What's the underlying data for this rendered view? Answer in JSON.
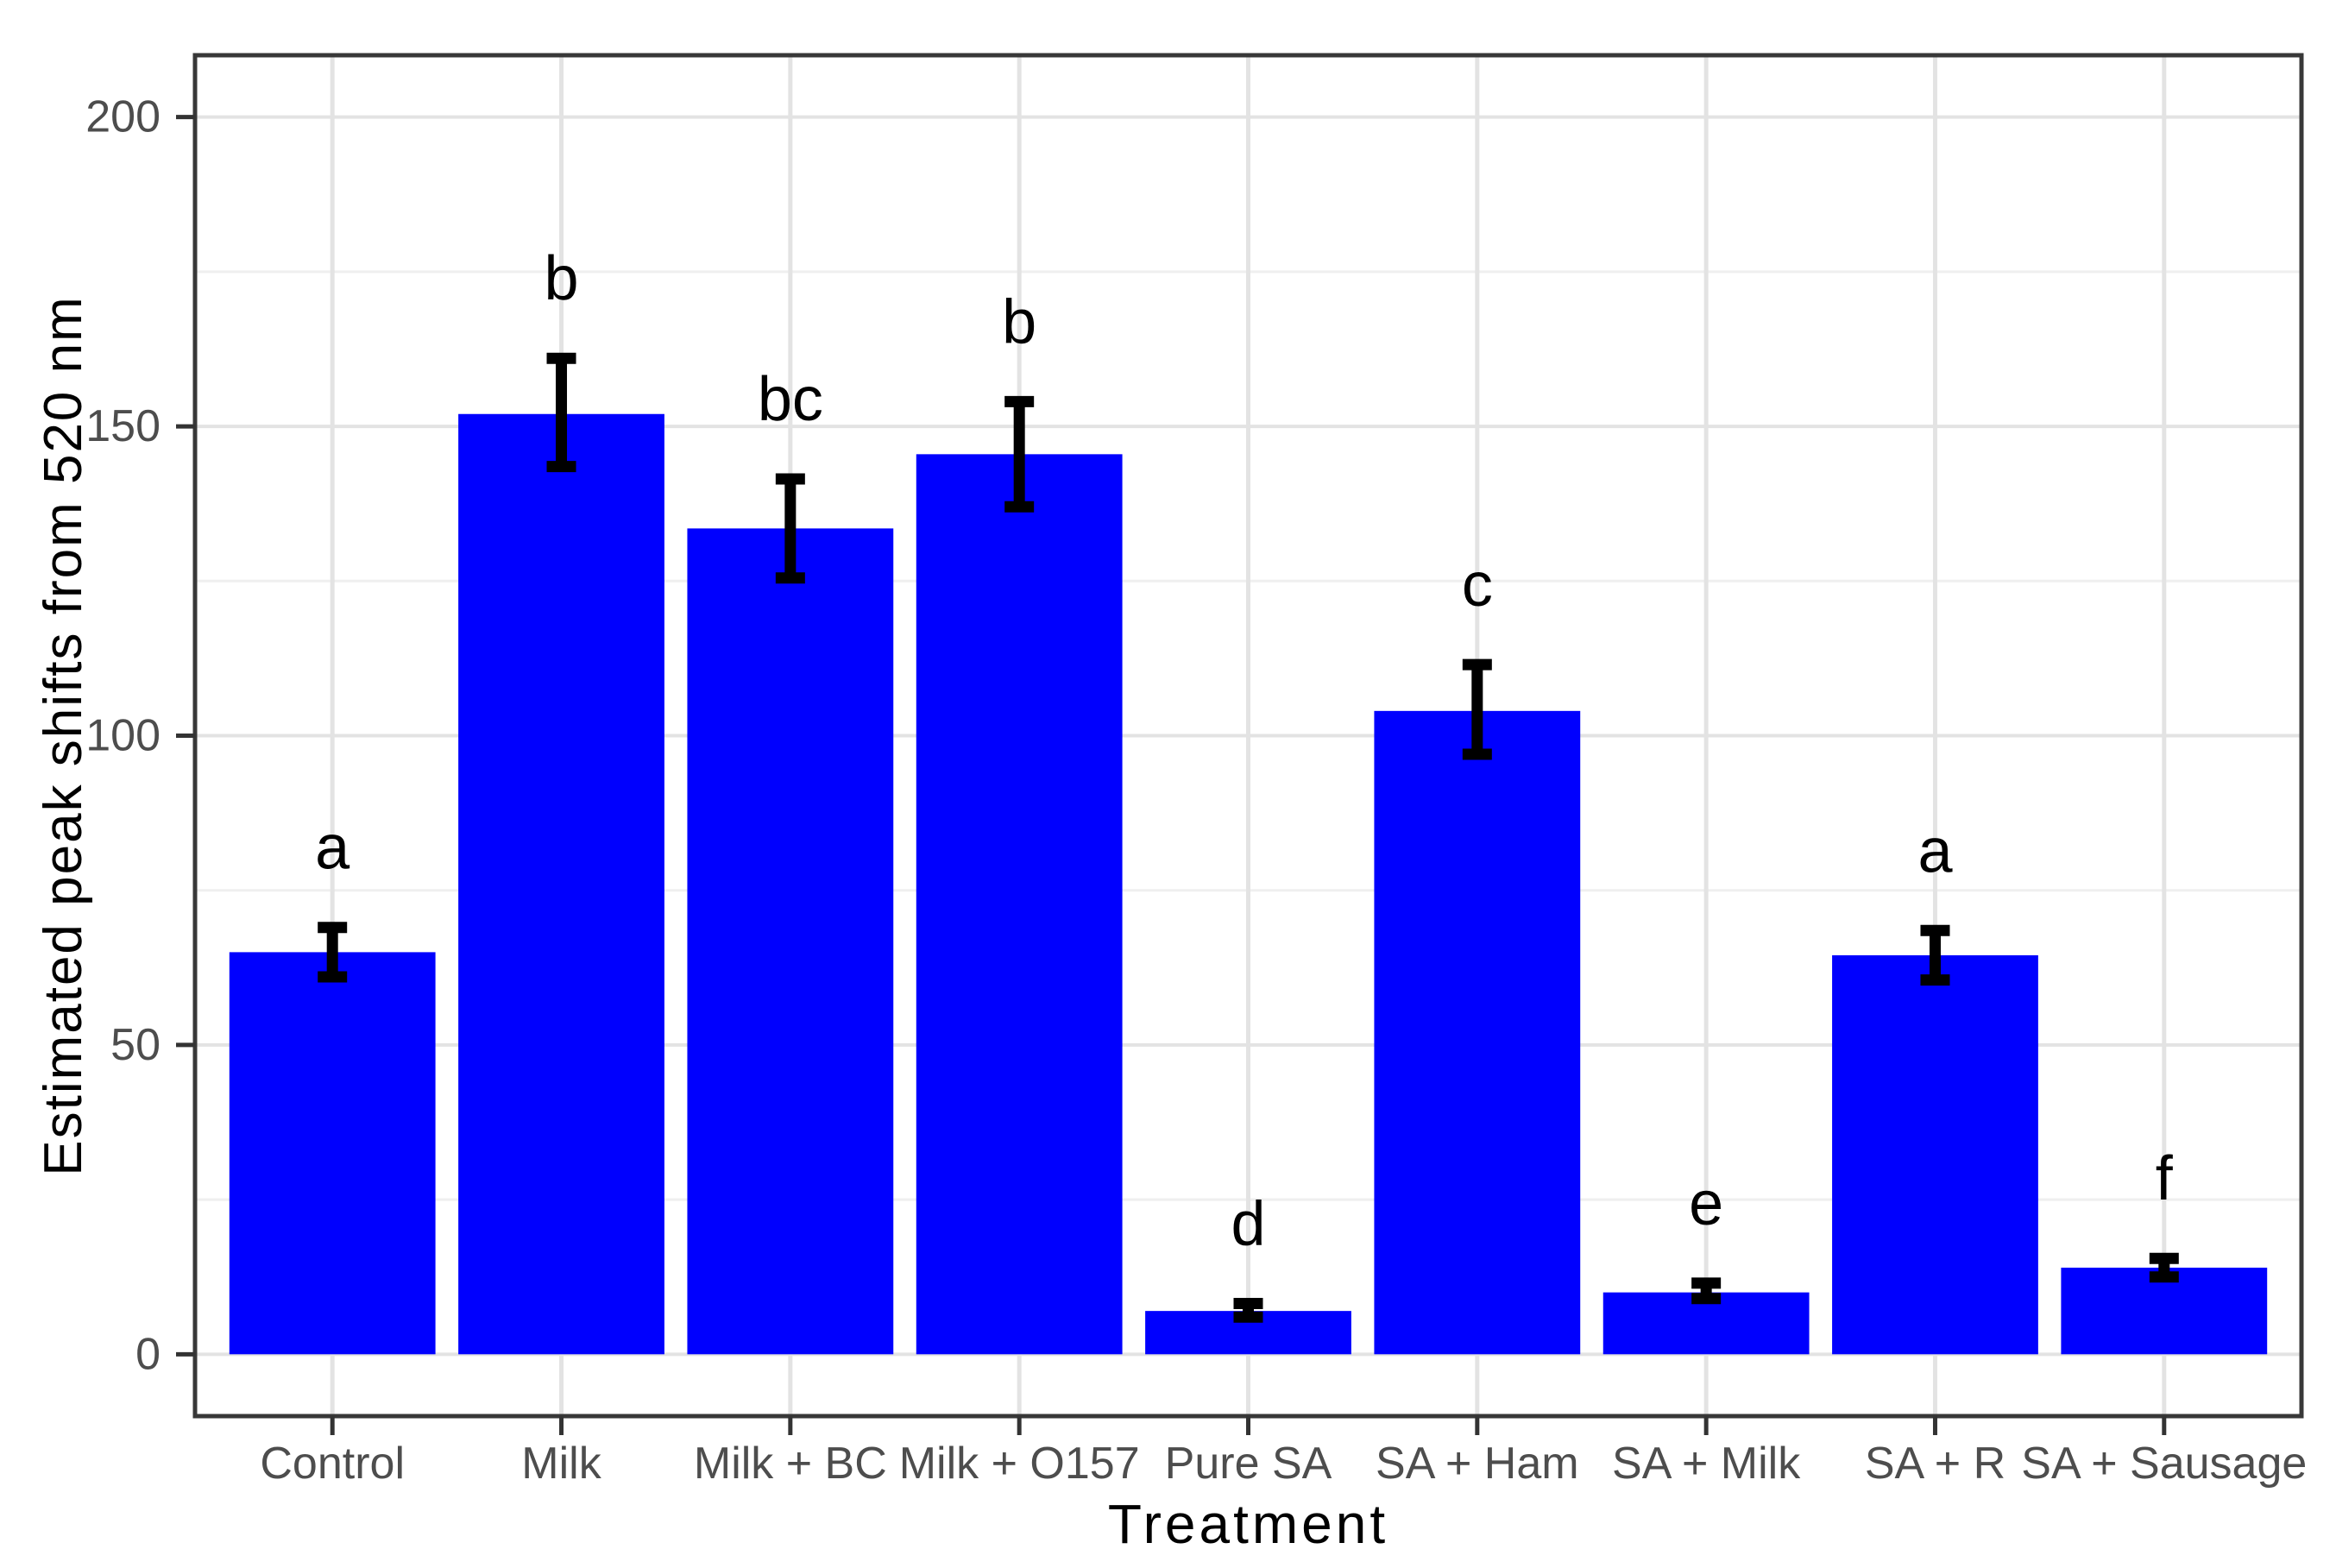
{
  "chart_data": {
    "type": "bar",
    "title": "",
    "xlabel": "Treatment",
    "ylabel": "Estimated peak shifts from 520 nm",
    "categories": [
      "Control",
      "Milk",
      "Milk + BC",
      "Milk + O157",
      "Pure SA",
      "SA + Ham",
      "SA + Milk",
      "SA + R",
      "SA + Sausage"
    ],
    "values": [
      65,
      152,
      133.5,
      145.5,
      7,
      104,
      10,
      64.5,
      14
    ],
    "error_upper": [
      69,
      161,
      141.5,
      154,
      8.2,
      111.5,
      11.5,
      68.5,
      15.5
    ],
    "error_lower": [
      61,
      143.5,
      125.5,
      137,
      6,
      97,
      9,
      60.5,
      12.5
    ],
    "sig_letters": [
      "a",
      "b",
      "bc",
      "b",
      "d",
      "c",
      "e",
      "a",
      "f"
    ],
    "y_ticks": [
      0,
      50,
      100,
      150,
      200
    ],
    "y_minor_ticks": [
      25,
      75,
      125,
      175
    ],
    "ylim": [
      -10,
      210
    ],
    "legend": "none",
    "grid": "on",
    "colors": {
      "bar_fill": "#0000FE",
      "errorbar": "#000000",
      "sig_letter": "#000000",
      "grid_major": "#E3E3E3",
      "grid_minor": "#EFEFEF",
      "grid_vertical": "#E3E3E3",
      "panel_border": "#383838",
      "tick_mark": "#333333",
      "tick_label": "#4D4D4D",
      "axis_title": "#000000",
      "panel_background": "#FFFFFF"
    }
  }
}
